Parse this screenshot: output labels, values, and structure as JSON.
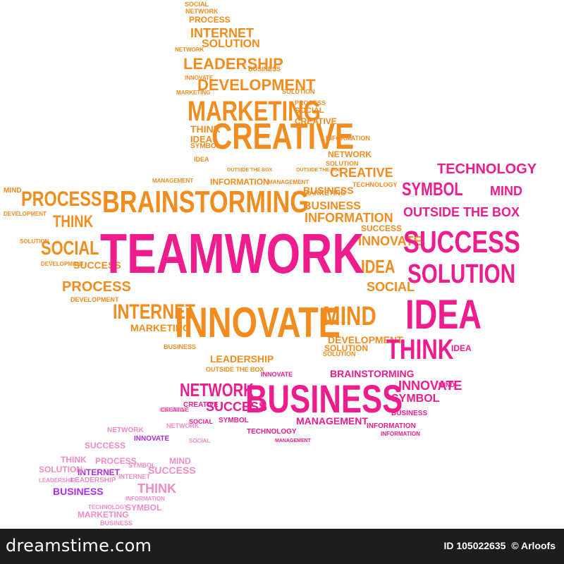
{
  "colors": {
    "orange": "#f28c1e",
    "orange_dark": "#e07610",
    "pink": "#ee1c8d",
    "magenta": "#cc1a86",
    "light_pink": "#f08cc4",
    "purple": "#b02ce0",
    "footer_bg": "#1d1d1d"
  },
  "footer": {
    "logo_text": "dreamstime.com",
    "id_text": "ID 105022635",
    "credit_text": "© Arloofs"
  },
  "words": [
    {
      "t": "SOCIAL",
      "c": "orange"
    },
    {
      "t": "NETWORK",
      "c": "orange"
    },
    {
      "t": "PROCESS",
      "c": "orange"
    },
    {
      "t": "INTERNET",
      "c": "orange"
    },
    {
      "t": "NETWORK",
      "c": "orange"
    },
    {
      "t": "SOLUTION",
      "c": "orange"
    },
    {
      "t": "LEADERSHIP",
      "c": "orange"
    },
    {
      "t": "BUSINESS",
      "c": "orange"
    },
    {
      "t": "INNOVATE",
      "c": "orange"
    },
    {
      "t": "DEVELOPMENT",
      "c": "orange"
    },
    {
      "t": "MARKETING",
      "c": "orange"
    },
    {
      "t": "SOLUTION",
      "c": "orange"
    },
    {
      "t": "MARKETING",
      "c": "orange"
    },
    {
      "t": "PROCESS",
      "c": "orange"
    },
    {
      "t": "SOCIAL",
      "c": "orange"
    },
    {
      "t": "THINK",
      "c": "orange"
    },
    {
      "t": "CREATIVE",
      "c": "orange"
    },
    {
      "t": "IDEA",
      "c": "orange"
    },
    {
      "t": "CREATIVE",
      "c": "orange"
    },
    {
      "t": "SYMBOL",
      "c": "orange"
    },
    {
      "t": "INFORMATION",
      "c": "orange"
    },
    {
      "t": "IDEA",
      "c": "orange"
    },
    {
      "t": "NETWORK",
      "c": "orange"
    },
    {
      "t": "SOLUTION",
      "c": "orange"
    },
    {
      "t": "OUTSIDE THE BOX",
      "c": "orange"
    },
    {
      "t": "OUTSIDE THE BOX",
      "c": "orange"
    },
    {
      "t": "CREATIVE",
      "c": "orange"
    },
    {
      "t": "TECHNOLOGY",
      "c": "orange"
    },
    {
      "t": "MIND",
      "c": "orange"
    },
    {
      "t": "MANAGEMENT",
      "c": "orange"
    },
    {
      "t": "INFORMATION",
      "c": "orange"
    },
    {
      "t": "MANAGEMENT",
      "c": "orange"
    },
    {
      "t": "BUSINESS",
      "c": "orange"
    },
    {
      "t": "PROCESS",
      "c": "orange"
    },
    {
      "t": "BRAINSTORMING",
      "c": "orange"
    },
    {
      "t": "MARKETING",
      "c": "orange"
    },
    {
      "t": "BUSINESS",
      "c": "orange"
    },
    {
      "t": "DEVELOPMENT",
      "c": "orange"
    },
    {
      "t": "THINK",
      "c": "orange"
    },
    {
      "t": "INFORMATION",
      "c": "orange"
    },
    {
      "t": "SOLUTION",
      "c": "orange"
    },
    {
      "t": "SOCIAL",
      "c": "orange"
    },
    {
      "t": "SUCCESS",
      "c": "orange"
    },
    {
      "t": "DEVELOPMENT",
      "c": "orange"
    },
    {
      "t": "SUCCESS",
      "c": "orange"
    },
    {
      "t": "INNOVATE",
      "c": "orange"
    },
    {
      "t": "PROCESS",
      "c": "orange"
    },
    {
      "t": "IDEA",
      "c": "orange"
    },
    {
      "t": "SOCIAL",
      "c": "orange"
    },
    {
      "t": "DEVELOPMENT",
      "c": "orange"
    },
    {
      "t": "INTERNET",
      "c": "orange"
    },
    {
      "t": "INNOVATE",
      "c": "orange"
    },
    {
      "t": "MIND",
      "c": "orange"
    },
    {
      "t": "MARKETING",
      "c": "orange"
    },
    {
      "t": "SOLUTION",
      "c": "orange"
    },
    {
      "t": "BUSINESS",
      "c": "orange"
    },
    {
      "t": "DEVELOPMENT",
      "c": "orange"
    },
    {
      "t": "SOLUTION",
      "c": "orange"
    },
    {
      "t": "LEADERSHIP",
      "c": "orange"
    },
    {
      "t": "OUTSIDE THE BOX",
      "c": "orange"
    },
    {
      "t": "TEAMWORK",
      "c": "pink"
    },
    {
      "t": "IDEA",
      "c": "pink"
    },
    {
      "t": "SUCCESS",
      "c": "pink"
    },
    {
      "t": "SOLUTION",
      "c": "pink"
    },
    {
      "t": "THINK",
      "c": "pink"
    },
    {
      "t": "BUSINESS",
      "c": "pink"
    },
    {
      "t": "OUTSIDE THE BOX",
      "c": "pink"
    },
    {
      "t": "TECHNOLOGY",
      "c": "pink"
    },
    {
      "t": "SYMBOL",
      "c": "pink"
    },
    {
      "t": "MIND",
      "c": "pink"
    },
    {
      "t": "NETWORK",
      "c": "pink"
    },
    {
      "t": "SUCCESS",
      "c": "pink"
    },
    {
      "t": "INNOVATE",
      "c": "pink"
    },
    {
      "t": "SYMBOL",
      "c": "pink"
    },
    {
      "t": "BRAINSTORMING",
      "c": "pink"
    },
    {
      "t": "MANAGEMENT",
      "c": "pink"
    },
    {
      "t": "INFORMATION",
      "c": "pink"
    },
    {
      "t": "INNOVATE",
      "c": "pink"
    },
    {
      "t": "CREATIVE",
      "c": "pink"
    },
    {
      "t": "MIND",
      "c": "pink"
    },
    {
      "t": "BUSINESS",
      "c": "pink"
    },
    {
      "t": "IDEA",
      "c": "pink"
    },
    {
      "t": "TECHNOLOGY",
      "c": "pink"
    },
    {
      "t": "SYMBOL",
      "c": "pink"
    },
    {
      "t": "CREATIVE",
      "c": "pink"
    },
    {
      "t": "MANAGEMENT",
      "c": "pink"
    },
    {
      "t": "INFORMATION",
      "c": "pink"
    },
    {
      "t": "SOCIAL",
      "c": "pink"
    },
    {
      "t": "NETWORK",
      "c": "light_pink"
    },
    {
      "t": "SUCCESS",
      "c": "light_pink"
    },
    {
      "t": "THINK",
      "c": "light_pink"
    },
    {
      "t": "PROCESS",
      "c": "light_pink"
    },
    {
      "t": "INTERNET",
      "c": "purple"
    },
    {
      "t": "LEADERSHIP",
      "c": "light_pink"
    },
    {
      "t": "BUSINESS",
      "c": "purple"
    },
    {
      "t": "MARKETING",
      "c": "light_pink"
    },
    {
      "t": "SOLUTION",
      "c": "light_pink"
    },
    {
      "t": "TECHNOLOGY",
      "c": "light_pink"
    },
    {
      "t": "SYMBOL",
      "c": "light_pink"
    },
    {
      "t": "MIND",
      "c": "light_pink"
    },
    {
      "t": "SUCCESS",
      "c": "light_pink"
    },
    {
      "t": "THINK",
      "c": "light_pink"
    },
    {
      "t": "INNOVATE",
      "c": "purple"
    },
    {
      "t": "CREATIVE",
      "c": "light_pink"
    },
    {
      "t": "NETWORK",
      "c": "light_pink"
    },
    {
      "t": "SOCIAL",
      "c": "light_pink"
    },
    {
      "t": "SYMBOL",
      "c": "light_pink"
    },
    {
      "t": "INFORMATION",
      "c": "light_pink"
    },
    {
      "t": "LEADERSHIP",
      "c": "light_pink"
    },
    {
      "t": "INTERNET",
      "c": "light_pink"
    },
    {
      "t": "BUSINESS",
      "c": "light_pink"
    }
  ]
}
